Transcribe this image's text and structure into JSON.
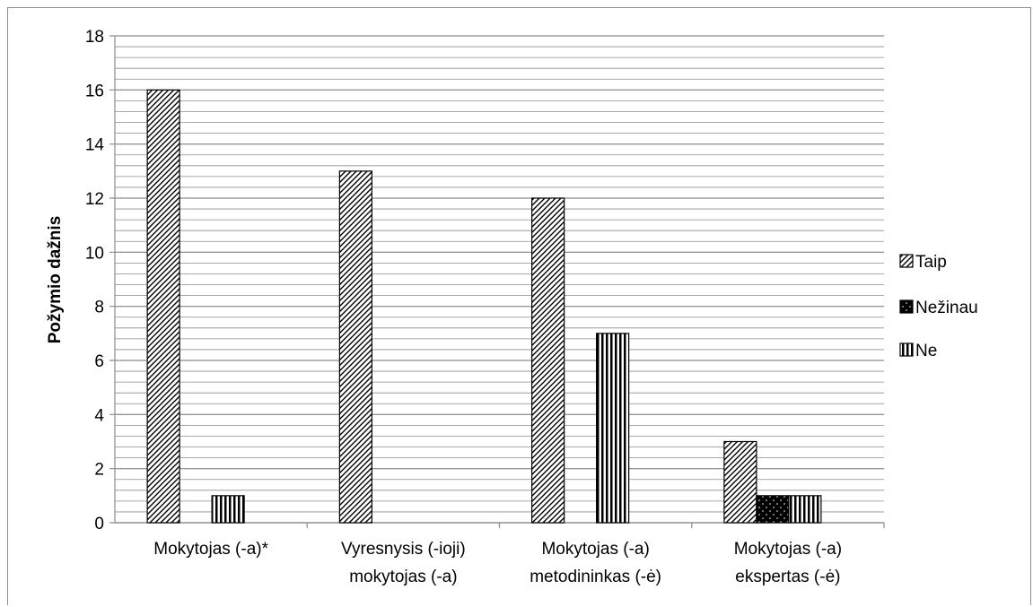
{
  "chart_data": {
    "type": "bar",
    "title": "",
    "xlabel": "",
    "ylabel": "Požymio dažnis",
    "ylim": [
      0,
      18
    ],
    "major_ticks": [
      0,
      2,
      4,
      6,
      8,
      10,
      12,
      14,
      16,
      18
    ],
    "minor_step": 0.4,
    "grid": true,
    "legend_position": "right",
    "categories": [
      [
        "Mokytojas (-a)*"
      ],
      [
        "Vyresnysis (-ioji)",
        "mokytojas (-a)"
      ],
      [
        "Mokytojas (-a)",
        "metodininkas (-ė)"
      ],
      [
        "Mokytojas (-a)",
        "ekspertas (-ė)"
      ]
    ],
    "series": [
      {
        "name": "Taip",
        "pattern": "diagonal-hatch",
        "values": [
          16,
          13,
          12,
          3
        ]
      },
      {
        "name": "Nežinau",
        "pattern": "black-dotted",
        "values": [
          0,
          0,
          0,
          1
        ]
      },
      {
        "name": "Ne",
        "pattern": "vertical-stripes",
        "values": [
          1,
          0,
          7,
          1
        ]
      }
    ],
    "colors": {
      "grid": "#8c8c8c",
      "axis": "#8c8c8c",
      "bar_outline": "#000000",
      "hatch": "#000000"
    }
  }
}
